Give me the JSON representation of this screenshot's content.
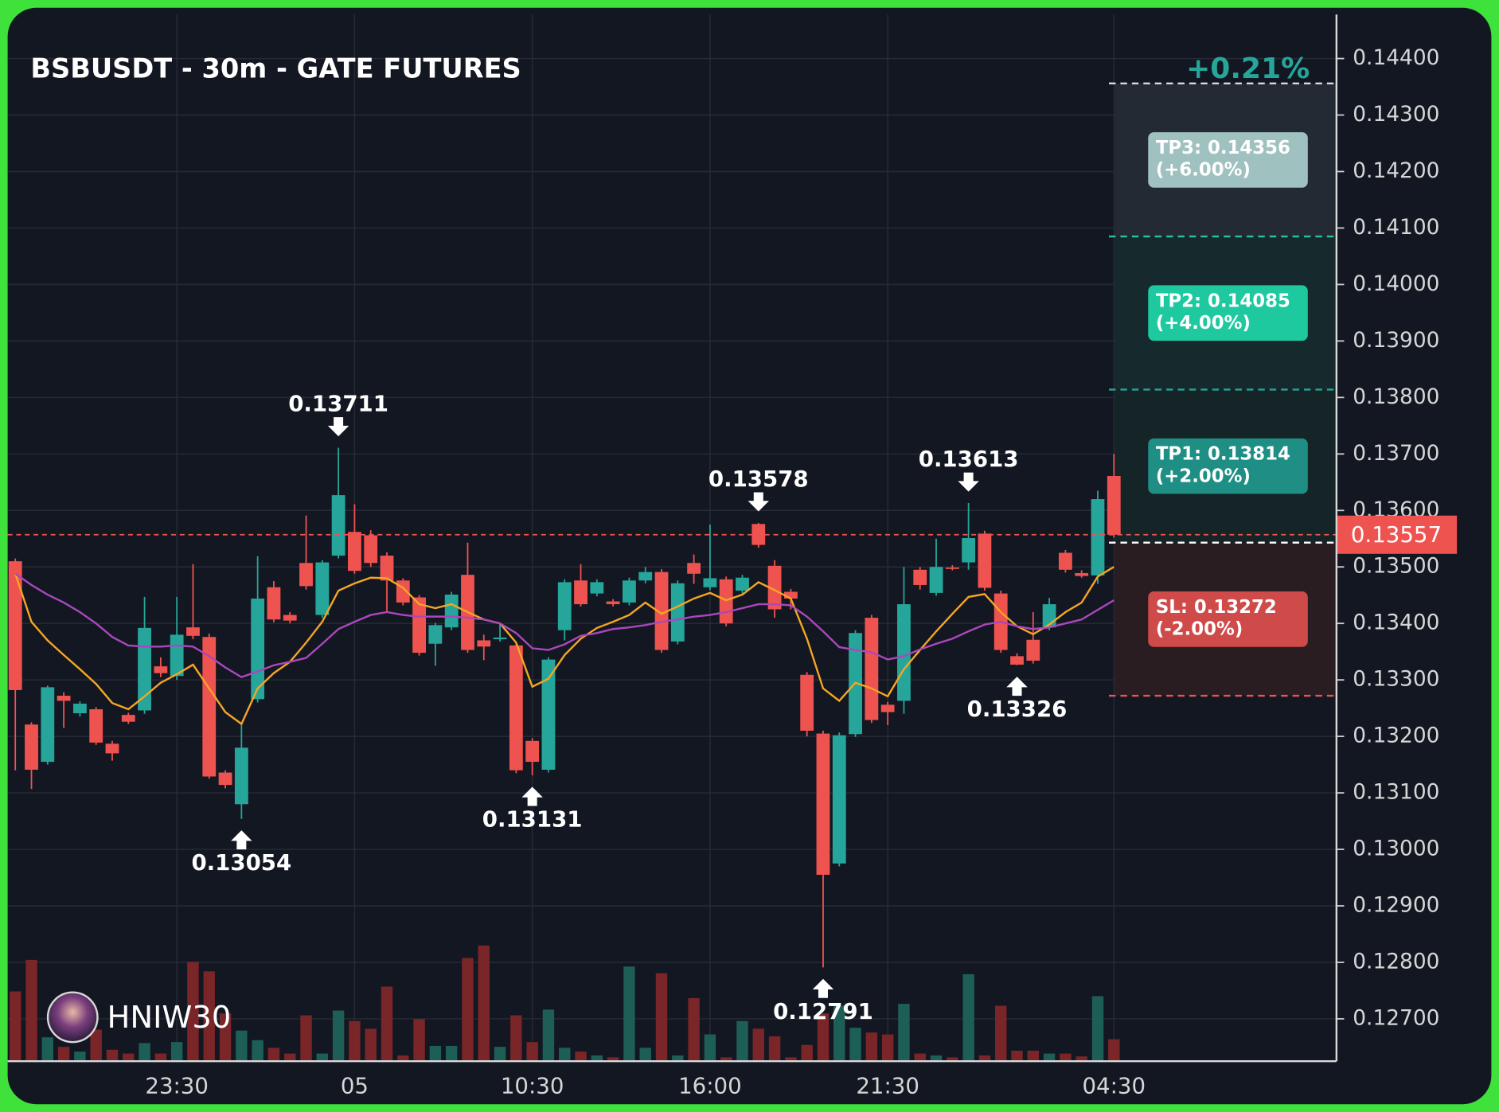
{
  "chart_data": {
    "type": "candlestick",
    "title": "BSBUSDT - 30m - GATE FUTURES",
    "change": "+0.21%",
    "watermark": "HNIW30",
    "categories": [
      null,
      null,
      null,
      null,
      null,
      null,
      null,
      null,
      null,
      null,
      "23:30",
      null,
      null,
      null,
      null,
      null,
      null,
      null,
      null,
      null,
      null,
      "05",
      null,
      null,
      null,
      null,
      null,
      null,
      null,
      null,
      null,
      null,
      "10:30",
      null,
      null,
      null,
      null,
      null,
      null,
      null,
      null,
      null,
      null,
      "16:00",
      null,
      null,
      null,
      null,
      null,
      null,
      null,
      null,
      null,
      null,
      "21:30",
      null,
      null,
      null,
      null,
      null,
      null,
      null,
      null,
      null,
      null,
      null,
      null,
      null,
      "04:30"
    ],
    "open": [
      0.1351,
      0.13221,
      0.13155,
      0.13272,
      0.13241,
      0.13248,
      0.13187,
      0.13238,
      0.13246,
      0.13324,
      0.13307,
      0.13393,
      0.13376,
      0.13136,
      0.1308,
      0.13266,
      0.13464,
      0.13415,
      0.13507,
      0.13415,
      0.1352,
      0.13562,
      0.13556,
      0.1352,
      0.13476,
      0.13446,
      0.13364,
      0.13393,
      0.13486,
      0.1337,
      0.13372,
      0.13361,
      0.13192,
      0.13141,
      0.13388,
      0.13476,
      0.13453,
      0.13439,
      0.13437,
      0.13476,
      0.13491,
      0.13368,
      0.13507,
      0.13464,
      0.13478,
      0.13458,
      0.13576,
      0.13502,
      0.13456,
      0.13309,
      0.13205,
      0.12975,
      0.13204,
      0.1341,
      0.13256,
      0.13263,
      0.13495,
      0.13454,
      0.13499,
      0.13508,
      0.13559,
      0.13453,
      0.13342,
      0.13371,
      0.13393,
      0.13525,
      0.13489,
      0.13485,
      0.13661
    ],
    "high": [
      0.13515,
      0.13225,
      0.1329,
      0.13278,
      0.13262,
      0.13252,
      0.13192,
      0.13242,
      0.13447,
      0.1334,
      0.13447,
      0.13505,
      0.13382,
      0.1314,
      0.13222,
      0.13519,
      0.13475,
      0.1342,
      0.13591,
      0.13512,
      0.13711,
      0.13611,
      0.13565,
      0.13526,
      0.1348,
      0.1345,
      0.13401,
      0.13456,
      0.13543,
      0.1338,
      0.134,
      0.13366,
      0.13197,
      0.1334,
      0.13478,
      0.13505,
      0.13478,
      0.13443,
      0.13481,
      0.135,
      0.13496,
      0.13476,
      0.13522,
      0.13575,
      0.13483,
      0.13486,
      0.13578,
      0.13512,
      0.13461,
      0.13314,
      0.1321,
      0.13207,
      0.13388,
      0.13415,
      0.13261,
      0.135,
      0.135,
      0.1355,
      0.13503,
      0.13613,
      0.13564,
      0.13458,
      0.13347,
      0.1342,
      0.13445,
      0.1353,
      0.13494,
      0.13635,
      0.137
    ],
    "low": [
      0.1314,
      0.13107,
      0.1315,
      0.13215,
      0.13235,
      0.13185,
      0.13157,
      0.13222,
      0.1324,
      0.13305,
      0.133,
      0.13372,
      0.13125,
      0.13108,
      0.13054,
      0.1326,
      0.13402,
      0.134,
      0.1346,
      0.1341,
      0.13515,
      0.13488,
      0.135,
      0.1342,
      0.13432,
      0.13343,
      0.13325,
      0.13388,
      0.13348,
      0.13335,
      0.13368,
      0.13135,
      0.13131,
      0.13136,
      0.1337,
      0.1343,
      0.13448,
      0.1343,
      0.13432,
      0.13471,
      0.13348,
      0.13363,
      0.1347,
      0.13459,
      0.13395,
      0.13453,
      0.13534,
      0.1341,
      0.13425,
      0.132,
      0.12791,
      0.1297,
      0.13199,
      0.13224,
      0.1322,
      0.1324,
      0.1346,
      0.13449,
      0.13494,
      0.13495,
      0.13458,
      0.13348,
      0.13326,
      0.13329,
      0.13388,
      0.1349,
      0.13481,
      0.1347,
      0.13552
    ],
    "close": [
      0.13282,
      0.13141,
      0.13287,
      0.13263,
      0.13258,
      0.13189,
      0.1317,
      0.13226,
      0.13392,
      0.13312,
      0.1338,
      0.13378,
      0.13129,
      0.13114,
      0.1318,
      0.13444,
      0.13407,
      0.13405,
      0.13466,
      0.13508,
      0.13627,
      0.13493,
      0.13507,
      0.13476,
      0.13437,
      0.13348,
      0.13397,
      0.13451,
      0.13353,
      0.13359,
      0.13375,
      0.1314,
      0.13155,
      0.13336,
      0.13473,
      0.13434,
      0.13473,
      0.13434,
      0.13476,
      0.13491,
      0.13353,
      0.13471,
      0.13488,
      0.1348,
      0.134,
      0.13481,
      0.13539,
      0.13425,
      0.13444,
      0.1321,
      0.12955,
      0.13202,
      0.13383,
      0.13229,
      0.13243,
      0.13434,
      0.13468,
      0.135,
      0.13497,
      0.13551,
      0.13463,
      0.13353,
      0.13327,
      0.13334,
      0.13434,
      0.13495,
      0.13484,
      0.1362,
      0.13557
    ],
    "volume": [
      73,
      106,
      25,
      15,
      10,
      33,
      12,
      8,
      19,
      8,
      20,
      104,
      94,
      50,
      32,
      22,
      14,
      8,
      48,
      8,
      53,
      42,
      34,
      78,
      6,
      44,
      16,
      16,
      108,
      121,
      15,
      48,
      20,
      54,
      14,
      10,
      6,
      4,
      99,
      14,
      92,
      6,
      66,
      28,
      4,
      42,
      34,
      26,
      4,
      17,
      50,
      58,
      35,
      30,
      28,
      60,
      8,
      6,
      4,
      91,
      6,
      58,
      11,
      11,
      8,
      8,
      5,
      68,
      23
    ],
    "up_color": "#26a69a",
    "down_color": "#ef5350",
    "volume_up_color": "#1d5f57",
    "volume_down_color": "#7a2528",
    "ma": [
      {
        "color": "#f5a623",
        "values": [
          0.13488,
          0.13403,
          0.1337,
          0.13344,
          0.13319,
          0.13293,
          0.13259,
          0.13248,
          0.13271,
          0.13295,
          0.1331,
          0.13327,
          0.13285,
          0.13243,
          0.13222,
          0.13285,
          0.13312,
          0.13332,
          0.13366,
          0.13403,
          0.13458,
          0.13471,
          0.13481,
          0.1348,
          0.13463,
          0.13434,
          0.13427,
          0.13434,
          0.1342,
          0.13407,
          0.134,
          0.13366,
          0.13288,
          0.13302,
          0.13344,
          0.13373,
          0.13392,
          0.13403,
          0.13415,
          0.13437,
          0.13417,
          0.1343,
          0.13444,
          0.13454,
          0.13441,
          0.13451,
          0.13473,
          0.13459,
          0.13444,
          0.13373,
          0.13285,
          0.13263,
          0.13295,
          0.13285,
          0.13271,
          0.13319,
          0.13353,
          0.13386,
          0.13417,
          0.13447,
          0.13452,
          0.1342,
          0.13395,
          0.13381,
          0.13398,
          0.1342,
          0.13437,
          0.13483,
          0.135
        ]
      },
      {
        "color": "#ab47bc",
        "values": [
          0.13488,
          0.13468,
          0.13451,
          0.13437,
          0.1342,
          0.134,
          0.13376,
          0.13361,
          0.13359,
          0.13359,
          0.13361,
          0.13359,
          0.13342,
          0.13322,
          0.13305,
          0.13315,
          0.13326,
          0.13332,
          0.13339,
          0.13364,
          0.1339,
          0.13403,
          0.13415,
          0.1342,
          0.13415,
          0.13412,
          0.13412,
          0.13412,
          0.1341,
          0.13407,
          0.134,
          0.13383,
          0.13356,
          0.13353,
          0.13363,
          0.13378,
          0.13383,
          0.1339,
          0.13393,
          0.13397,
          0.13403,
          0.13407,
          0.13412,
          0.13415,
          0.1342,
          0.13427,
          0.13434,
          0.13434,
          0.13432,
          0.13412,
          0.13386,
          0.13358,
          0.13353,
          0.13349,
          0.13336,
          0.13342,
          0.13354,
          0.13364,
          0.13373,
          0.13386,
          0.13398,
          0.13403,
          0.13395,
          0.1339,
          0.13393,
          0.134,
          0.13407,
          0.13424,
          0.13441
        ]
      }
    ],
    "ylim": [
      0.12625,
      0.14478
    ],
    "yticks": [
      {
        "value": 0.144,
        "label": "0.14400"
      },
      {
        "value": 0.143,
        "label": "0.14300"
      },
      {
        "value": 0.142,
        "label": "0.14200"
      },
      {
        "value": 0.141,
        "label": "0.14100"
      },
      {
        "value": 0.14,
        "label": "0.14000"
      },
      {
        "value": 0.139,
        "label": "0.13900"
      },
      {
        "value": 0.138,
        "label": "0.13800"
      },
      {
        "value": 0.137,
        "label": "0.13700"
      },
      {
        "value": 0.136,
        "label": "0.13600"
      },
      {
        "value": 0.135,
        "label": "0.13500"
      },
      {
        "value": 0.134,
        "label": "0.13400"
      },
      {
        "value": 0.133,
        "label": "0.13300"
      },
      {
        "value": 0.132,
        "label": "0.13200"
      },
      {
        "value": 0.131,
        "label": "0.13100"
      },
      {
        "value": 0.13,
        "label": "0.13000"
      },
      {
        "value": 0.129,
        "label": "0.12900"
      },
      {
        "value": 0.128,
        "label": "0.12800"
      },
      {
        "value": 0.127,
        "label": "0.12700"
      }
    ],
    "grid": true,
    "last_price": 0.13557,
    "entry": 0.13543,
    "levels": [
      {
        "price": 0.14356,
        "label": [
          "TP3: 0.14356",
          "(+6.00%)"
        ],
        "color": "#9fc1bf",
        "line_color": "#d3dbdb",
        "zone_color": "#232a34"
      },
      {
        "price": 0.14085,
        "label": [
          "TP2: 0.14085",
          "(+4.00%)"
        ],
        "color": "#1ec99f",
        "line_color": "#27c49c",
        "zone_color": "#16292c"
      },
      {
        "price": 0.13814,
        "label": [
          "TP1: 0.13814",
          "(+2.00%)"
        ],
        "color": "#1f8f85",
        "line_color": "#26a69a",
        "zone_color": "#142427"
      },
      {
        "price": 0.13272,
        "label": [
          "SL: 0.13272",
          "(-2.00%)"
        ],
        "color": "#cf4b4a",
        "line_color": "#ef5350",
        "zone_color": "#2a1d22"
      }
    ],
    "annotations": [
      {
        "text": "0.13711",
        "at": 20,
        "side": "above"
      },
      {
        "text": "0.13054",
        "at": 14,
        "side": "below"
      },
      {
        "text": "0.13131",
        "at": 32,
        "side": "below"
      },
      {
        "text": "0.13578",
        "at": 46,
        "side": "above"
      },
      {
        "text": "0.12791",
        "at": 50,
        "side": "below"
      },
      {
        "text": "0.13613",
        "at": 59,
        "side": "above"
      },
      {
        "text": "0.13326",
        "at": 62,
        "side": "below"
      }
    ]
  }
}
